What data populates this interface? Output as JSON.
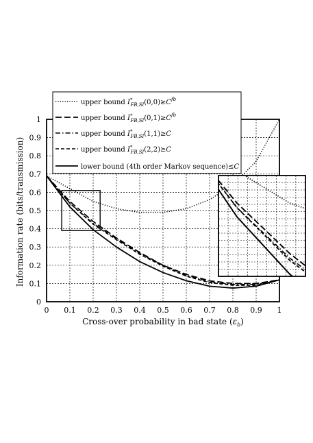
{
  "chart_data": {
    "type": "line",
    "xlabel": "Cross-over probability in bad state (",
    "xlabel_symbol": "ε",
    "xlabel_sub": "b",
    "xlabel_end": ")",
    "ylabel": "Information rate (bits/transmission)",
    "xlim": [
      0,
      1
    ],
    "ylim": [
      0,
      1
    ],
    "grid": true,
    "legend_position": "top-left",
    "x_ticks": [
      "0",
      "0.1",
      "0.2",
      "0.3",
      "0.4",
      "0.5",
      "0.6",
      "0.7",
      "0.8",
      "0.9",
      "1"
    ],
    "y_ticks": [
      "0",
      "0.1",
      "0.2",
      "0.3",
      "0.4",
      "0.5",
      "0.6",
      "0.7",
      "0.8",
      "0.9",
      "1"
    ],
    "series": [
      {
        "name": "upper bound",
        "math_main": "I",
        "math_sub": "FB,SI",
        "args": "(0,0)",
        "rel": "≥",
        "rhs": "C",
        "rhs_sup": "fb",
        "style": "dotted",
        "x": [
          0,
          0.1,
          0.2,
          0.3,
          0.4,
          0.5,
          0.6,
          0.7,
          0.8,
          0.9,
          1.0
        ],
        "y": [
          0.69,
          0.62,
          0.55,
          0.51,
          0.49,
          0.49,
          0.51,
          0.56,
          0.64,
          0.77,
          1.0
        ]
      },
      {
        "name": "upper bound",
        "math_main": "I",
        "math_sub": "FB,SI",
        "args": "(0,1)",
        "rel": "≥",
        "rhs": "C",
        "rhs_sup": "fb",
        "style": "longdash",
        "x": [
          0,
          0.1,
          0.2,
          0.3,
          0.4,
          0.5,
          0.6,
          0.7,
          0.8,
          0.9,
          1.0
        ],
        "y": [
          0.69,
          0.55,
          0.44,
          0.35,
          0.27,
          0.2,
          0.15,
          0.115,
          0.1,
          0.1,
          0.12
        ]
      },
      {
        "name": "upper bound",
        "math_main": "I",
        "math_sub": "FB,SI",
        "args": "(1,1)",
        "rel": "≥",
        "rhs": "C",
        "rhs_sup": "",
        "style": "dashdot",
        "x": [
          0,
          0.1,
          0.2,
          0.3,
          0.4,
          0.5,
          0.6,
          0.7,
          0.8,
          0.9,
          1.0
        ],
        "y": [
          0.69,
          0.54,
          0.43,
          0.345,
          0.265,
          0.2,
          0.145,
          0.11,
          0.095,
          0.095,
          0.12
        ]
      },
      {
        "name": "upper bound",
        "math_main": "I",
        "math_sub": "FB,SI",
        "args": "(2,2)",
        "rel": "≥",
        "rhs": "C",
        "rhs_sup": "",
        "style": "dashed",
        "x": [
          0,
          0.1,
          0.2,
          0.3,
          0.4,
          0.5,
          0.6,
          0.7,
          0.8,
          0.9,
          1.0
        ],
        "y": [
          0.69,
          0.54,
          0.425,
          0.34,
          0.26,
          0.195,
          0.14,
          0.105,
          0.09,
          0.09,
          0.12
        ]
      },
      {
        "name": "lower bound (4th order Markov sequence)",
        "math_main": "",
        "math_sub": "",
        "args": "",
        "rel": "≤",
        "rhs": "C",
        "rhs_sup": "",
        "style": "solid",
        "x": [
          0,
          0.1,
          0.2,
          0.3,
          0.4,
          0.5,
          0.6,
          0.7,
          0.8,
          0.9,
          1.0
        ],
        "y": [
          0.69,
          0.52,
          0.395,
          0.3,
          0.22,
          0.16,
          0.115,
          0.085,
          0.075,
          0.085,
          0.12
        ]
      }
    ],
    "inset": {
      "source_xlim": [
        0.065,
        0.23
      ],
      "source_ylim": [
        0.39,
        0.61
      ],
      "placement": "right"
    }
  }
}
